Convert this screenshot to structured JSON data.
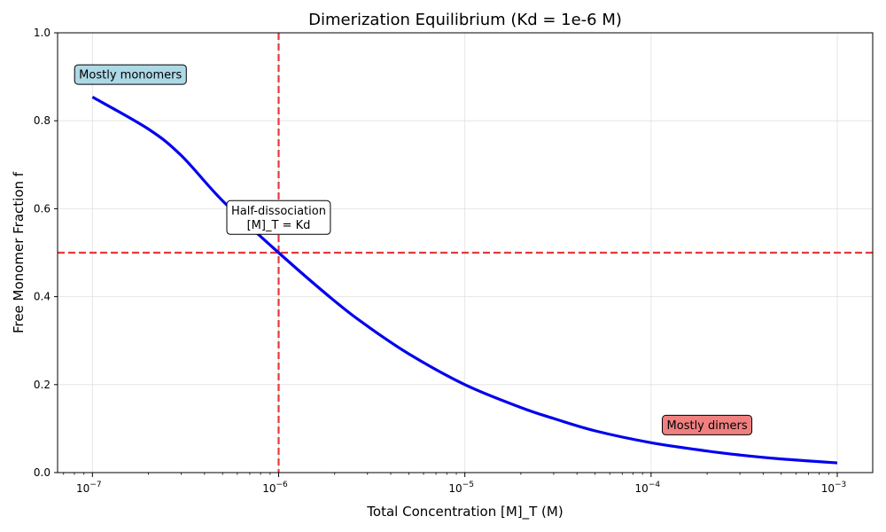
{
  "chart_data": {
    "type": "line",
    "title": "Dimerization Equilibrium (Kd = 1e-6 M)",
    "xlabel": "Total Concentration [M]_T (M)",
    "ylabel": "Free Monomer Fraction f",
    "xscale": "log",
    "xlim": [
      6.5e-08,
      0.00155
    ],
    "ylim": [
      0,
      1.0
    ],
    "x_ticks": [
      {
        "value": 1e-07,
        "base": "10",
        "exp": "−7"
      },
      {
        "value": 1e-06,
        "base": "10",
        "exp": "−6"
      },
      {
        "value": 1e-05,
        "base": "10",
        "exp": "−5"
      },
      {
        "value": 0.0001,
        "base": "10",
        "exp": "−4"
      },
      {
        "value": 0.001,
        "base": "10",
        "exp": "−3"
      }
    ],
    "y_ticks": [
      "0.0",
      "0.2",
      "0.4",
      "0.6",
      "0.8",
      "1.0"
    ],
    "grid": true,
    "series": [
      {
        "color": "#0000ee",
        "x": [
          1e-07,
          2e-07,
          3e-07,
          5e-07,
          1e-06,
          2e-06,
          3e-06,
          5e-06,
          1e-05,
          2e-05,
          3e-05,
          5e-05,
          0.0001,
          0.0002,
          0.0003,
          0.0005,
          0.001
        ],
        "y": [
          0.854,
          0.781,
          0.721,
          0.618,
          0.5,
          0.39,
          0.333,
          0.27,
          0.2,
          0.148,
          0.123,
          0.095,
          0.068,
          0.049,
          0.04,
          0.031,
          0.022
        ]
      }
    ],
    "reference_lines": [
      {
        "orientation": "vertical",
        "value": 1e-06,
        "color": "#e8383b",
        "style": "dashed"
      },
      {
        "orientation": "horizontal",
        "value": 0.5,
        "color": "#e8383b",
        "style": "dashed"
      }
    ],
    "annotations": [
      {
        "id": "ann-monomers",
        "lines": [
          "Mostly monomers"
        ],
        "x": 1.6e-07,
        "y": 0.905,
        "fill": "#add8e6"
      },
      {
        "id": "ann-half",
        "lines": [
          "Half-dissociation",
          "[M]_T = Kd"
        ],
        "x": 1e-06,
        "y": 0.58,
        "fill": "#ffffff"
      },
      {
        "id": "ann-dimers",
        "lines": [
          "Mostly dimers"
        ],
        "x": 0.0002,
        "y": 0.108,
        "fill": "#f08080"
      }
    ]
  }
}
